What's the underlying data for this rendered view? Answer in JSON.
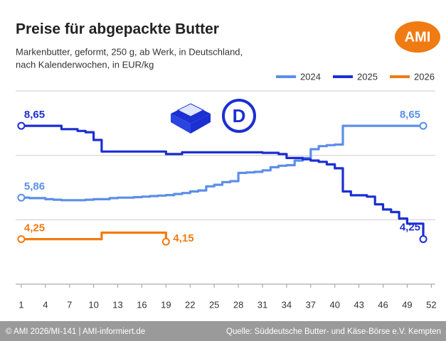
{
  "chart_data": {
    "type": "line",
    "title": "Preise für abgepackte Butter",
    "subtitle": [
      "Markenbutter, geformt, 250 g, ab Werk, in Deutschland,",
      "nach Kalenderwochen, in EUR/kg"
    ],
    "logo": "AMI",
    "icon_label": "D",
    "footer": {
      "left": "© AMI 2026/MI-141 | AMI-informiert.de",
      "right": "Quelle: Süddeutsche Butter- und Käse-Börse e.V. Kempten"
    },
    "x": [
      1,
      2,
      3,
      4,
      5,
      6,
      7,
      8,
      9,
      10,
      11,
      12,
      13,
      14,
      15,
      16,
      17,
      18,
      19,
      20,
      21,
      22,
      23,
      24,
      25,
      26,
      27,
      28,
      29,
      30,
      31,
      32,
      33,
      34,
      35,
      36,
      37,
      38,
      39,
      40,
      41,
      42,
      43,
      44,
      45,
      46,
      47,
      48,
      49,
      50,
      51
    ],
    "xlim": [
      0.3,
      52.5
    ],
    "xticks": [
      1,
      4,
      7,
      10,
      13,
      16,
      19,
      22,
      25,
      28,
      31,
      34,
      37,
      40,
      43,
      46,
      49,
      52
    ],
    "ylim": [
      2.5,
      10.5
    ],
    "yticks": [
      2.5,
      5,
      7.5,
      10
    ],
    "grid": true,
    "legend": "top-right",
    "series": [
      {
        "name": "2024",
        "color": "#5b8fe8",
        "values": [
          5.86,
          5.84,
          5.84,
          5.8,
          5.78,
          5.76,
          5.76,
          5.76,
          5.78,
          5.8,
          5.8,
          5.84,
          5.86,
          5.86,
          5.88,
          5.9,
          5.92,
          5.94,
          5.96,
          6.0,
          6.04,
          6.1,
          6.14,
          6.3,
          6.36,
          6.46,
          6.5,
          6.82,
          6.84,
          6.86,
          6.92,
          7.04,
          7.1,
          7.12,
          7.3,
          7.4,
          7.74,
          7.86,
          7.9,
          7.92,
          8.65,
          8.65,
          8.65,
          8.65,
          8.65,
          8.65,
          8.65,
          8.65,
          8.65,
          8.65,
          8.65
        ],
        "value_labels": [
          "5,86",
          null,
          null,
          null,
          null,
          null,
          null,
          null,
          null,
          null,
          null,
          null,
          null,
          null,
          null,
          null,
          null,
          null,
          null,
          null,
          null,
          null,
          null,
          null,
          null,
          null,
          null,
          null,
          null,
          null,
          null,
          null,
          null,
          null,
          null,
          null,
          null,
          null,
          null,
          null,
          null,
          null,
          null,
          null,
          null,
          null,
          null,
          null,
          null,
          null,
          "8,65"
        ]
      },
      {
        "name": "2025",
        "color": "#1b2fd2",
        "values": [
          8.65,
          8.65,
          8.65,
          8.65,
          8.65,
          8.52,
          8.52,
          8.45,
          8.4,
          8.1,
          7.65,
          7.65,
          7.65,
          7.65,
          7.65,
          7.65,
          7.65,
          7.65,
          7.55,
          7.55,
          7.62,
          7.62,
          7.62,
          7.62,
          7.62,
          7.62,
          7.62,
          7.62,
          7.62,
          7.62,
          7.6,
          7.6,
          7.55,
          7.4,
          7.4,
          7.35,
          7.3,
          7.25,
          7.15,
          7.0,
          6.1,
          5.95,
          5.95,
          5.9,
          5.6,
          5.4,
          5.3,
          5.05,
          4.85,
          4.85,
          4.25
        ],
        "value_labels": [
          "8,65",
          null,
          null,
          null,
          null,
          null,
          null,
          null,
          null,
          null,
          null,
          null,
          null,
          null,
          null,
          null,
          null,
          null,
          null,
          null,
          null,
          null,
          null,
          null,
          null,
          null,
          null,
          null,
          null,
          null,
          null,
          null,
          null,
          null,
          null,
          null,
          null,
          null,
          null,
          null,
          null,
          null,
          null,
          null,
          null,
          null,
          null,
          null,
          null,
          null,
          "4,25"
        ]
      },
      {
        "name": "2026",
        "color": "#f07b12",
        "values": [
          4.25,
          4.25,
          4.25,
          4.25,
          4.25,
          4.25,
          4.25,
          4.25,
          4.25,
          4.25,
          4.5,
          4.5,
          4.5,
          4.5,
          4.5,
          4.5,
          4.5,
          4.5,
          4.15,
          null,
          null,
          null,
          null,
          null,
          null,
          null,
          null,
          null,
          null,
          null,
          null,
          null,
          null,
          null,
          null,
          null,
          null,
          null,
          null,
          null,
          null,
          null,
          null,
          null,
          null,
          null,
          null,
          null,
          null,
          null,
          null
        ],
        "value_labels": [
          "4,25",
          null,
          null,
          null,
          null,
          null,
          null,
          null,
          null,
          null,
          null,
          null,
          null,
          null,
          null,
          null,
          null,
          null,
          "4,15",
          null,
          null,
          null,
          null,
          null,
          null,
          null,
          null,
          null,
          null,
          null,
          null,
          null,
          null,
          null,
          null,
          null,
          null,
          null,
          null,
          null,
          null,
          null,
          null,
          null,
          null,
          null,
          null,
          null,
          null,
          null,
          null
        ]
      }
    ]
  }
}
